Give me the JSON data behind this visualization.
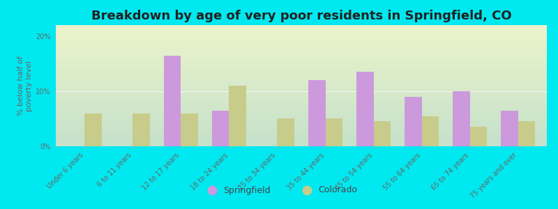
{
  "title": "Breakdown by age of very poor residents in Springfield, CO",
  "categories": [
    "Under 6 years",
    "6 to 11 years",
    "12 to 17 years",
    "18 to 24 years",
    "25 to 34 years",
    "35 to 44 years",
    "45 to 54 years",
    "55 to 64 years",
    "65 to 74 years",
    "75 years and over"
  ],
  "springfield_values": [
    0,
    0,
    16.5,
    6.5,
    0,
    12.0,
    13.5,
    9.0,
    10.0,
    6.5
  ],
  "colorado_values": [
    6.0,
    6.0,
    6.0,
    11.0,
    5.0,
    5.0,
    4.5,
    5.5,
    3.5,
    4.5
  ],
  "springfield_color": "#cc99dd",
  "colorado_color": "#c8cc8a",
  "background_outer": "#00e8f0",
  "background_plot": "#e8f2dc",
  "ylim": [
    0,
    22
  ],
  "yticks": [
    0,
    10,
    20
  ],
  "ytick_labels": [
    "0%",
    "10%",
    "20%"
  ],
  "ylabel": "% below half of\npoverty level",
  "legend_springfield": "Springfield",
  "legend_colorado": "Colorado",
  "bar_width": 0.35,
  "title_fontsize": 13,
  "axis_fontsize": 8,
  "label_fontsize": 7
}
